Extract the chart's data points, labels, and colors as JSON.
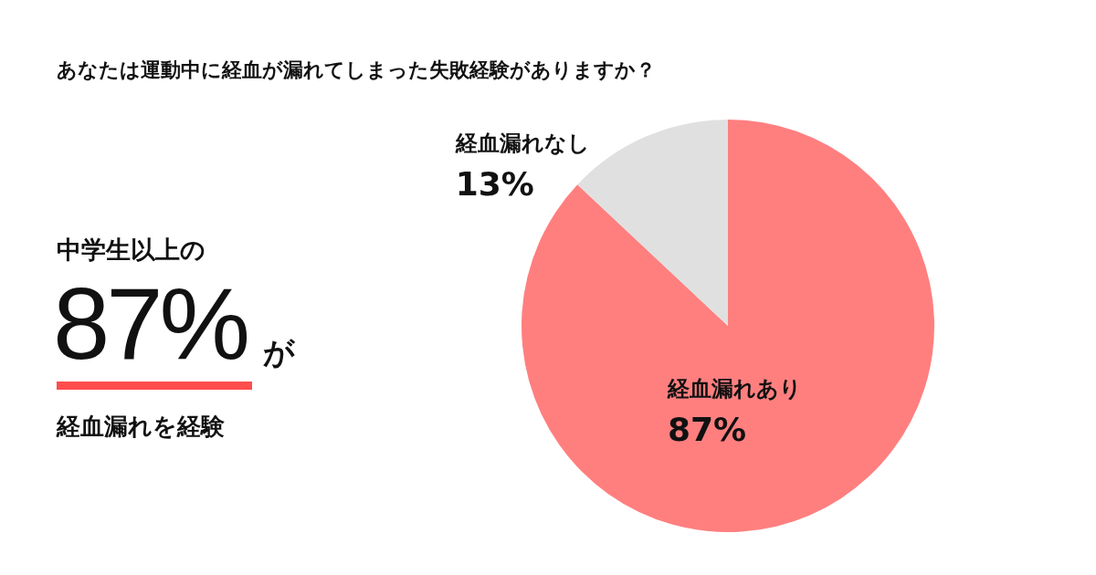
{
  "chart_data": {
    "type": "pie",
    "title": "あなたは運動中に経血が漏れてしまった失敗経験がありますか？",
    "categories": [
      "経血漏れあり",
      "経血漏れなし"
    ],
    "values": [
      87,
      13
    ],
    "value_labels": [
      "87%",
      "13%"
    ],
    "colors": [
      "#ff7f7f",
      "#e0e0e0"
    ],
    "legend": false,
    "annotations": [
      "中学生以上の",
      "87%",
      "が",
      "経血漏れを経験"
    ]
  }
}
